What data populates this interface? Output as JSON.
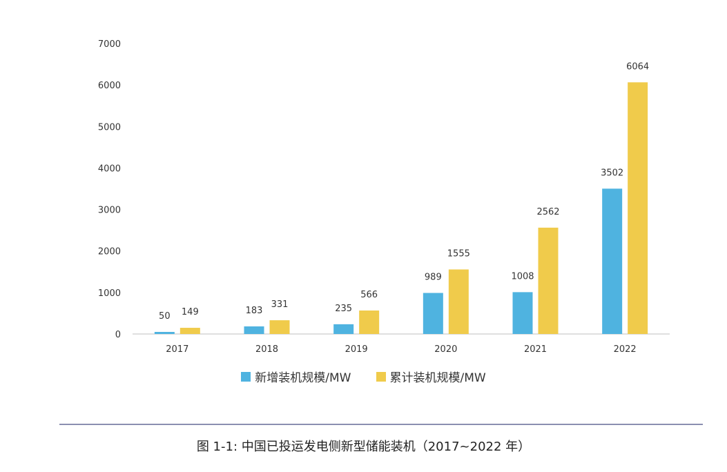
{
  "caption": "图 1-1: 中国已投运发电侧新型储能装机（2017~2022 年）",
  "colors": {
    "new": "#4fb3e0",
    "cumulative": "#f0cb4b",
    "axis": "#bfbfbf"
  },
  "chart_data": {
    "type": "bar",
    "title": "",
    "xlabel": "",
    "ylabel": "",
    "categories": [
      "2017",
      "2018",
      "2019",
      "2020",
      "2021",
      "2022"
    ],
    "series": [
      {
        "name": "新增装机规模/MW",
        "values": [
          50,
          183,
          235,
          989,
          1008,
          3502
        ]
      },
      {
        "name": "累计装机规模/MW",
        "values": [
          149,
          331,
          566,
          1555,
          2562,
          6064
        ]
      }
    ],
    "ylim": [
      0,
      7000
    ],
    "yticks": [
      "0",
      "1000",
      "2000",
      "3000",
      "4000",
      "5000",
      "6000",
      "7000"
    ],
    "grid": false,
    "legend_position": "bottom"
  }
}
